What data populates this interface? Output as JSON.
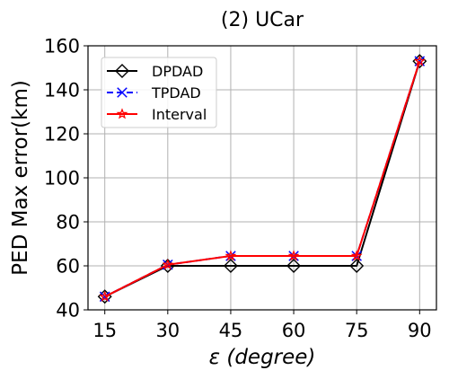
{
  "chart_data": {
    "type": "line",
    "title": "(2) UCar",
    "xlabel_symbol": "ε",
    "xlabel_rest": "(degree)",
    "ylabel": "PED Max error(km)",
    "categories": [
      "15",
      "30",
      "45",
      "60",
      "75",
      "90"
    ],
    "x": [
      15,
      30,
      45,
      60,
      75,
      90
    ],
    "xlim": [
      11,
      94
    ],
    "ylim": [
      40,
      160
    ],
    "yticks": [
      40,
      60,
      80,
      100,
      120,
      140,
      160
    ],
    "grid": true,
    "legend_position": "upper-left",
    "series": [
      {
        "name": "DPDAD",
        "values": [
          46,
          60,
          60,
          60,
          60,
          153
        ],
        "color": "#000000",
        "line_style": "solid",
        "marker": "diamond-open"
      },
      {
        "name": "TPDAD",
        "values": [
          46,
          60.5,
          64.5,
          64.5,
          64.5,
          153
        ],
        "color": "#0000ff",
        "line_style": "dashed",
        "marker": "x"
      },
      {
        "name": "Interval",
        "values": [
          46,
          60.5,
          64.5,
          64.5,
          64.5,
          153
        ],
        "color": "#ff0000",
        "line_style": "solid",
        "marker": "star-open"
      }
    ]
  }
}
